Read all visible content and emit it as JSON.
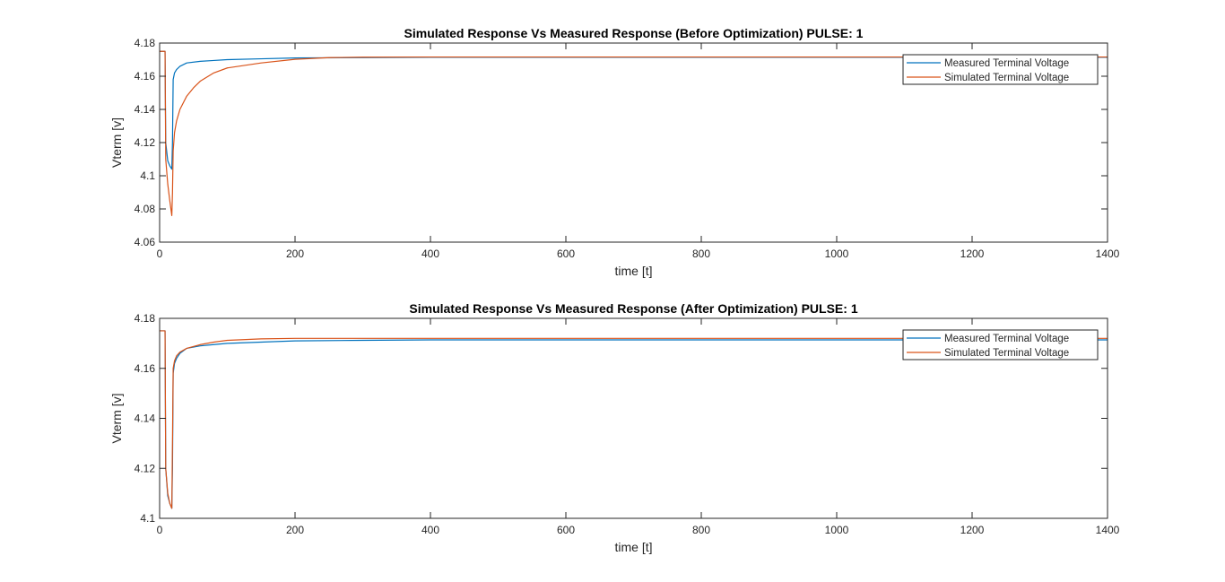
{
  "figure": {
    "background": "#ffffff"
  },
  "chart_data": [
    {
      "type": "line",
      "title": "Simulated Response Vs Measured Response (Before Optimization) PULSE: 1",
      "xlabel": "time [t]",
      "ylabel": "Vterm [v]",
      "xlim": [
        0,
        1400
      ],
      "ylim": [
        4.06,
        4.18
      ],
      "xticks": [
        0,
        200,
        400,
        600,
        800,
        1000,
        1200,
        1400
      ],
      "xtick_labels": [
        "0",
        "200",
        "400",
        "600",
        "800",
        "1000",
        "1200",
        "1400"
      ],
      "yticks": [
        4.06,
        4.08,
        4.1,
        4.12,
        4.14,
        4.16,
        4.18
      ],
      "ytick_labels": [
        "4.06",
        "4.08",
        "4.1",
        "4.12",
        "4.14",
        "4.16",
        "4.18"
      ],
      "grid": false,
      "legend_position": "top-right",
      "series": [
        {
          "name": "Measured Terminal Voltage",
          "color": "#0072BD",
          "x": [
            0,
            8,
            9,
            12,
            15,
            18,
            19,
            20,
            22,
            25,
            30,
            40,
            60,
            80,
            100,
            150,
            200,
            300,
            400,
            600,
            800,
            1000,
            1200,
            1400
          ],
          "y": [
            4.175,
            4.175,
            4.12,
            4.109,
            4.106,
            4.104,
            4.12,
            4.158,
            4.162,
            4.164,
            4.166,
            4.168,
            4.169,
            4.1695,
            4.17,
            4.1705,
            4.171,
            4.1712,
            4.1714,
            4.1714,
            4.1714,
            4.1714,
            4.1714,
            4.1714
          ]
        },
        {
          "name": "Simulated Terminal Voltage",
          "color": "#D95319",
          "x": [
            0,
            8,
            9,
            12,
            15,
            18,
            19,
            20,
            22,
            25,
            30,
            40,
            50,
            60,
            80,
            100,
            150,
            200,
            250,
            300,
            400,
            600,
            800,
            1000,
            1200,
            1400
          ],
          "y": [
            4.175,
            4.175,
            4.11,
            4.095,
            4.085,
            4.076,
            4.09,
            4.115,
            4.126,
            4.133,
            4.14,
            4.148,
            4.153,
            4.157,
            4.162,
            4.165,
            4.168,
            4.1702,
            4.1712,
            4.1715,
            4.1716,
            4.1716,
            4.1716,
            4.1716,
            4.1716,
            4.1716
          ]
        }
      ]
    },
    {
      "type": "line",
      "title": "Simulated Response Vs Measured Response (After Optimization) PULSE: 1",
      "xlabel": "time [t]",
      "ylabel": "Vterm [v]",
      "xlim": [
        0,
        1400
      ],
      "ylim": [
        4.1,
        4.18
      ],
      "xticks": [
        0,
        200,
        400,
        600,
        800,
        1000,
        1200,
        1400
      ],
      "xtick_labels": [
        "0",
        "200",
        "400",
        "600",
        "800",
        "1000",
        "1200",
        "1400"
      ],
      "yticks": [
        4.1,
        4.12,
        4.14,
        4.16,
        4.18
      ],
      "ytick_labels": [
        "4.1",
        "4.12",
        "4.14",
        "4.16",
        "4.18"
      ],
      "grid": false,
      "legend_position": "top-right",
      "series": [
        {
          "name": "Measured Terminal Voltage",
          "color": "#0072BD",
          "x": [
            0,
            8,
            9,
            12,
            15,
            18,
            19,
            20,
            22,
            25,
            30,
            40,
            60,
            80,
            100,
            150,
            200,
            300,
            400,
            600,
            800,
            1000,
            1200,
            1400
          ],
          "y": [
            4.175,
            4.175,
            4.12,
            4.109,
            4.106,
            4.104,
            4.12,
            4.158,
            4.162,
            4.164,
            4.166,
            4.168,
            4.169,
            4.1695,
            4.17,
            4.1705,
            4.171,
            4.1712,
            4.1714,
            4.1714,
            4.1714,
            4.1714,
            4.1714,
            4.1714
          ]
        },
        {
          "name": "Simulated Terminal Voltage",
          "color": "#D95319",
          "x": [
            0,
            8,
            9,
            12,
            15,
            18,
            19,
            20,
            22,
            25,
            30,
            40,
            60,
            80,
            100,
            150,
            200,
            300,
            400,
            600,
            800,
            1000,
            1200,
            1400
          ],
          "y": [
            4.175,
            4.175,
            4.12,
            4.11,
            4.106,
            4.104,
            4.13,
            4.16,
            4.163,
            4.165,
            4.1665,
            4.168,
            4.1695,
            4.1705,
            4.1712,
            4.1718,
            4.172,
            4.172,
            4.172,
            4.172,
            4.172,
            4.172,
            4.172,
            4.172
          ]
        }
      ]
    }
  ]
}
